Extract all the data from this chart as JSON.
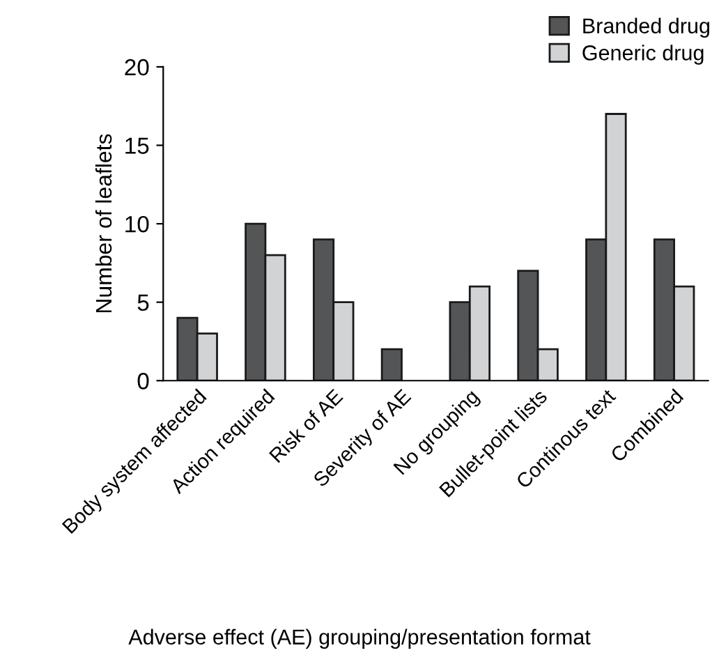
{
  "chart_data": {
    "type": "bar",
    "xlabel": "Adverse effect (AE) grouping/presentation format",
    "ylabel": "Number of leaflets",
    "categories": [
      "Body system affected",
      "Action required",
      "Risk of AE",
      "Severity of AE",
      "No grouping",
      "Bullet-point lists",
      "Continous text",
      "Combined"
    ],
    "series": [
      {
        "name": "Branded drug",
        "color": "#545556",
        "values": [
          4,
          10,
          9,
          2,
          5,
          7,
          9,
          9
        ]
      },
      {
        "name": "Generic drug",
        "color": "#d2d3d5",
        "values": [
          3,
          8,
          5,
          null,
          6,
          2,
          17,
          6
        ]
      }
    ],
    "ylim": [
      0,
      20
    ],
    "yticks": [
      0,
      5,
      10,
      15,
      20
    ],
    "grid": false,
    "legend": "top right"
  }
}
